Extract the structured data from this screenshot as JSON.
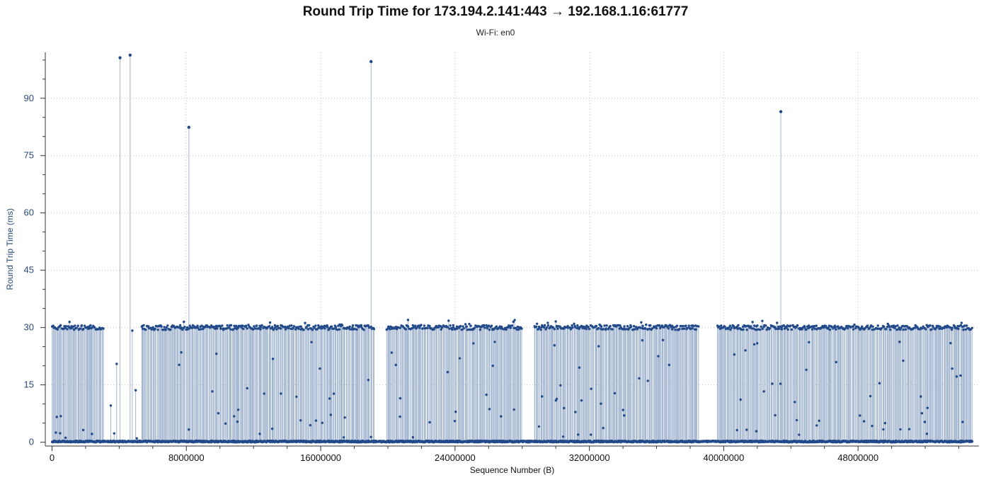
{
  "title": "Round Trip Time for 173.194.2.141:443 → 192.168.1.16:61777",
  "subtitle": "Wi-Fi: en0",
  "colors": {
    "marker": "#224a8a",
    "stem": "#a3b5cf",
    "grid": "#c8c8c8",
    "axis": "#333333"
  },
  "chart_data": {
    "type": "scatter",
    "style": "impulse-with-markers",
    "xlabel": "Sequence Number (B)",
    "ylabel": "Round Trip Time (ms)",
    "xlim": [
      -400000,
      55200000
    ],
    "ylim": [
      -1,
      102
    ],
    "x_ticks": [
      0,
      8000000,
      16000000,
      24000000,
      32000000,
      40000000,
      48000000
    ],
    "x_tick_labels": [
      "0",
      "8000000",
      "16000000",
      "24000000",
      "32000000",
      "40000000",
      "48000000"
    ],
    "y_ticks": [
      0,
      15,
      30,
      45,
      60,
      75,
      90
    ],
    "y_tick_labels": [
      "0",
      "15",
      "30",
      "45",
      "60",
      "75",
      "90"
    ],
    "grid": true,
    "spikes": [
      {
        "x": 4050000,
        "y": 100.6
      },
      {
        "x": 4650000,
        "y": 101.3
      },
      {
        "x": 8150000,
        "y": 82.4
      },
      {
        "x": 19000000,
        "y": 99.6
      },
      {
        "x": 43400000,
        "y": 86.5
      }
    ],
    "clusters": [
      {
        "x_start": 0,
        "x_end": 3100000,
        "y_level": 30
      },
      {
        "x_start": 5300000,
        "x_end": 19200000,
        "y_level": 30
      },
      {
        "x_start": 19900000,
        "x_end": 28000000,
        "y_level": 30
      },
      {
        "x_start": 28700000,
        "x_end": 38500000,
        "y_level": 30
      },
      {
        "x_start": 39600000,
        "x_end": 54800000,
        "y_level": 30
      }
    ],
    "isolated_points": [
      {
        "x": 3500000,
        "y": 9.6
      },
      {
        "x": 3850000,
        "y": 20.5
      },
      {
        "x": 4780000,
        "y": 29.2
      },
      {
        "x": 4980000,
        "y": 13.6
      },
      {
        "x": 3700000,
        "y": 2.3
      },
      {
        "x": 5050000,
        "y": 1.0
      },
      {
        "x": 13150000,
        "y": 21.8
      },
      {
        "x": 21200000,
        "y": 32.0
      },
      {
        "x": 36100000,
        "y": 22.5
      },
      {
        "x": 52100000,
        "y": 2.2
      }
    ],
    "baseline_range": {
      "x_start": 0,
      "x_end": 54800000,
      "y": 0
    }
  }
}
